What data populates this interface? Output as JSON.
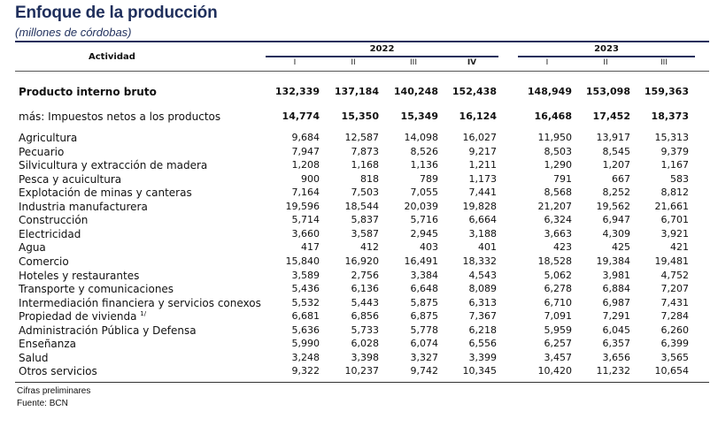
{
  "title": "Enfoque de la producción",
  "subtitle": "(millones de córdobas)",
  "header": {
    "activity": "Actividad",
    "years": [
      "2022",
      "2023"
    ],
    "quarters_2022": [
      "I",
      "II",
      "III",
      "IV"
    ],
    "quarters_2023": [
      "I",
      "II",
      "III"
    ]
  },
  "rows": [
    {
      "label": "Producto interno bruto",
      "values": [
        "132,339",
        "137,184",
        "140,248",
        "152,438",
        "148,949",
        "153,098",
        "159,363"
      ],
      "bold": true
    },
    {
      "label": "más: Impuestos netos a los productos",
      "values": [
        "14,774",
        "15,350",
        "15,349",
        "16,124",
        "16,468",
        "17,452",
        "18,373"
      ],
      "bold_values": true
    },
    {
      "label": "Agricultura",
      "values": [
        "9,684",
        "12,587",
        "14,098",
        "16,027",
        "11,950",
        "13,917",
        "15,313"
      ]
    },
    {
      "label": "Pecuario",
      "values": [
        "7,947",
        "7,873",
        "8,526",
        "9,217",
        "8,503",
        "8,545",
        "9,379"
      ]
    },
    {
      "label": "Silvicultura y extracción de madera",
      "values": [
        "1,208",
        "1,168",
        "1,136",
        "1,211",
        "1,290",
        "1,207",
        "1,167"
      ]
    },
    {
      "label": "Pesca y acuicultura",
      "values": [
        "900",
        "818",
        "789",
        "1,173",
        "791",
        "667",
        "583"
      ]
    },
    {
      "label": "Explotación de minas y canteras",
      "values": [
        "7,164",
        "7,503",
        "7,055",
        "7,441",
        "8,568",
        "8,252",
        "8,812"
      ]
    },
    {
      "label": "Industria manufacturera",
      "values": [
        "19,596",
        "18,544",
        "20,039",
        "19,828",
        "21,207",
        "19,562",
        "21,661"
      ]
    },
    {
      "label": "Construcción",
      "values": [
        "5,714",
        "5,837",
        "5,716",
        "6,664",
        "6,324",
        "6,947",
        "6,701"
      ]
    },
    {
      "label": "Electricidad",
      "values": [
        "3,660",
        "3,587",
        "2,945",
        "3,188",
        "3,663",
        "4,309",
        "3,921"
      ]
    },
    {
      "label": "Agua",
      "values": [
        "417",
        "412",
        "403",
        "401",
        "423",
        "425",
        "421"
      ]
    },
    {
      "label": "Comercio",
      "values": [
        "15,840",
        "16,920",
        "16,491",
        "18,332",
        "18,528",
        "19,384",
        "19,481"
      ]
    },
    {
      "label": "Hoteles y restaurantes",
      "values": [
        "3,589",
        "2,756",
        "3,384",
        "4,543",
        "5,062",
        "3,981",
        "4,752"
      ]
    },
    {
      "label": "Transporte y comunicaciones",
      "values": [
        "5,436",
        "6,136",
        "6,648",
        "8,089",
        "6,278",
        "6,884",
        "7,207"
      ]
    },
    {
      "label": "Intermediación financiera y servicios conexos",
      "values": [
        "5,532",
        "5,443",
        "5,875",
        "6,313",
        "6,710",
        "6,987",
        "7,431"
      ]
    },
    {
      "label": "Propiedad de vivienda",
      "sup": "1/",
      "values": [
        "6,681",
        "6,856",
        "6,875",
        "7,367",
        "7,091",
        "7,291",
        "7,284"
      ]
    },
    {
      "label": "Administración Pública y Defensa",
      "values": [
        "5,636",
        "5,733",
        "5,778",
        "6,218",
        "5,959",
        "6,045",
        "6,260"
      ]
    },
    {
      "label": "Enseñanza",
      "values": [
        "5,990",
        "6,028",
        "6,074",
        "6,556",
        "6,257",
        "6,357",
        "6,399"
      ]
    },
    {
      "label": "Salud",
      "values": [
        "3,248",
        "3,398",
        "3,327",
        "3,399",
        "3,457",
        "3,656",
        "3,565"
      ]
    },
    {
      "label": "Otros servicios",
      "values": [
        "9,322",
        "10,237",
        "9,742",
        "10,345",
        "10,420",
        "11,232",
        "10,654"
      ]
    }
  ],
  "notes": [
    "Cifras preliminares",
    "Fuente: BCN"
  ]
}
